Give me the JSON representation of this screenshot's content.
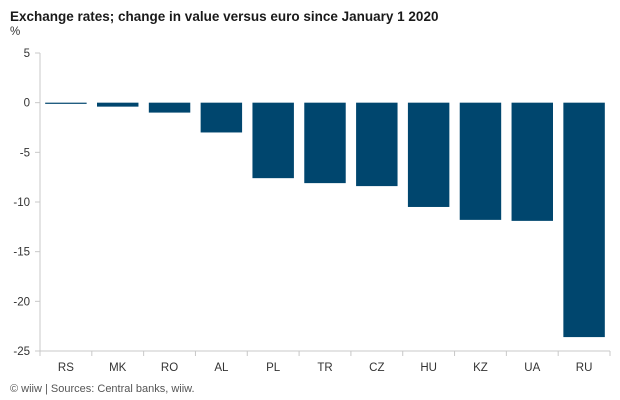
{
  "title": "Exchange rates; change in value versus euro since January 1 2020",
  "unit": "%",
  "source": "© wiiw | Sources: Central banks, wiiw.",
  "colors": {
    "bar": "#00466e",
    "axis": "#c8c8c8"
  },
  "chart_data": {
    "type": "bar",
    "title": "Exchange rates; change in value versus euro since January 1 2020",
    "ylabel": "%",
    "xlabel": "",
    "categories": [
      "RS",
      "MK",
      "RO",
      "AL",
      "PL",
      "TR",
      "CZ",
      "HU",
      "KZ",
      "UA",
      "RU"
    ],
    "values": [
      -0.1,
      -0.4,
      -1.0,
      -3.0,
      -7.6,
      -8.1,
      -8.4,
      -10.5,
      -11.8,
      -11.9,
      -23.6
    ],
    "ylim": [
      -25,
      5
    ],
    "yticks": [
      5,
      0,
      -5,
      -10,
      -15,
      -20,
      -25
    ],
    "grid": false,
    "legend": "none"
  }
}
